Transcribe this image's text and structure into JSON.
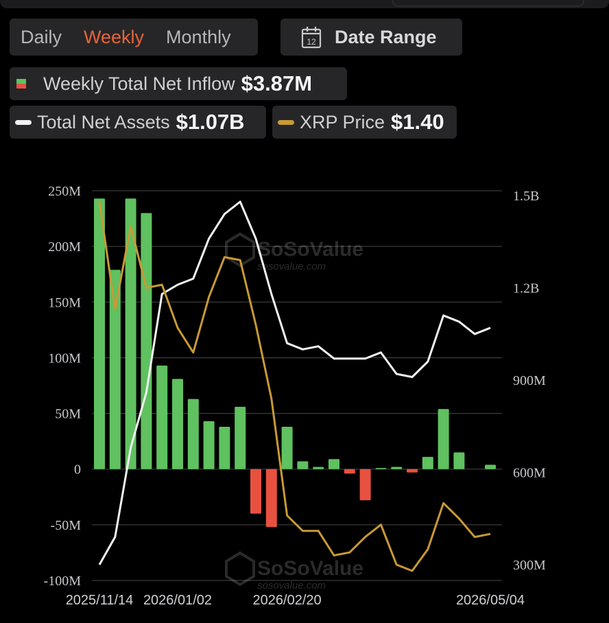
{
  "tabs": [
    {
      "label": "Daily",
      "active": false
    },
    {
      "label": "Weekly",
      "active": true
    },
    {
      "label": "Monthly",
      "active": false
    }
  ],
  "date_range": {
    "label": "Date Range",
    "icon": "calendar-icon",
    "icon_text": "12"
  },
  "summary": {
    "net_inflow": {
      "label": "Weekly Total Net Inflow",
      "value": "$3.87M"
    },
    "total_net_assets": {
      "label": "Total Net Assets",
      "value": "$1.07B"
    },
    "xrp_price": {
      "label": "XRP Price",
      "value": "$1.40"
    }
  },
  "colors": {
    "inflow_positive": "#5fc15f",
    "inflow_negative": "#e8513f",
    "net_assets_line": "#f2f2f2",
    "price_line": "#c89a35",
    "active_tab": "#e8643b"
  },
  "watermark": {
    "brand": "SoSoValue",
    "url": "sosovalue.com"
  },
  "chart_data": {
    "type": "bar",
    "left_axis": {
      "ticks": [
        "250M",
        "200M",
        "150M",
        "100M",
        "50M",
        "0",
        "-50M",
        "-100M"
      ],
      "range": [
        -100,
        250
      ],
      "unit": "M"
    },
    "right_axis": {
      "ticks": [
        "1.5B",
        "1.2B",
        "900M",
        "600M",
        "300M"
      ],
      "range": [
        0.3,
        1.5
      ],
      "unit": "B"
    },
    "x_tick_labels": [
      "2025/11/14",
      "2026/01/02",
      "2026/02/20",
      "2026/05/04"
    ],
    "x_tick_index": [
      0,
      5,
      12,
      25
    ],
    "series": [
      {
        "name": "Weekly Total Net Inflow",
        "kind": "bar",
        "axis": "left",
        "values": [
          243,
          179,
          243,
          230,
          93,
          81,
          63,
          43,
          38,
          56,
          -40,
          -52,
          38,
          7,
          2,
          9,
          -4,
          -28,
          1,
          2,
          -3,
          11,
          54,
          15,
          0,
          3.87
        ]
      },
      {
        "name": "Total Net Assets",
        "kind": "line",
        "axis": "right",
        "values": [
          0.3,
          0.39,
          0.68,
          0.86,
          1.18,
          1.21,
          1.23,
          1.36,
          1.44,
          1.48,
          1.36,
          1.18,
          1.02,
          1.0,
          1.01,
          0.97,
          0.97,
          0.97,
          0.99,
          0.92,
          0.91,
          0.96,
          1.11,
          1.09,
          1.05,
          1.07
        ]
      },
      {
        "name": "XRP Price",
        "kind": "line",
        "axis": "right",
        "values": [
          1.48,
          1.13,
          1.4,
          1.2,
          1.21,
          1.07,
          0.99,
          1.17,
          1.3,
          1.29,
          1.08,
          0.84,
          0.46,
          0.41,
          0.41,
          0.33,
          0.34,
          0.39,
          0.43,
          0.3,
          0.28,
          0.35,
          0.5,
          0.45,
          0.39,
          0.4
        ]
      }
    ]
  }
}
